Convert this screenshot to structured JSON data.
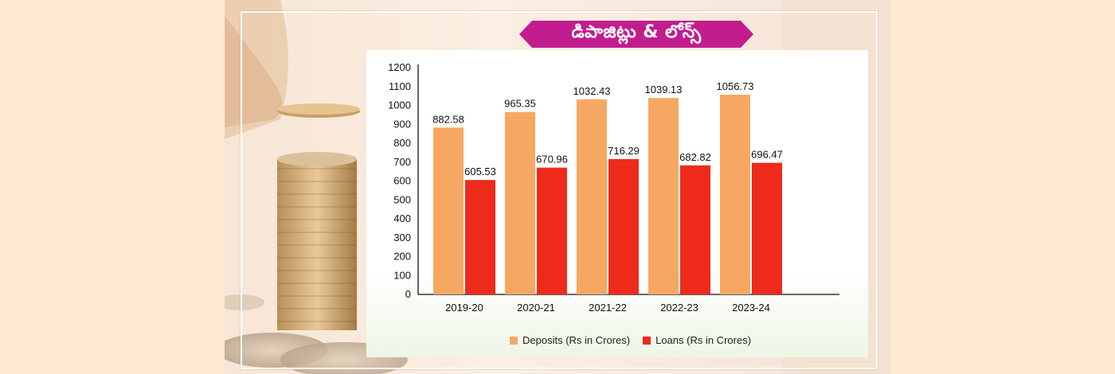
{
  "banner": {
    "title": "డిపాజిట్లు & లోన్స్",
    "color": "#c21d8f"
  },
  "chart_data": {
    "type": "bar",
    "categories": [
      "2019-20",
      "2020-21",
      "2021-22",
      "2022-23",
      "2023-24"
    ],
    "series": [
      {
        "name": "Deposits (Rs in Crores)",
        "color": "#f6a862",
        "values": [
          882.58,
          965.35,
          1032.43,
          1039.13,
          1056.73
        ],
        "labels": [
          "882.58",
          "965.35",
          "1032.43",
          "1039.13",
          "1056.73"
        ]
      },
      {
        "name": "Loans (Rs in Crores)",
        "color": "#ee2a1b",
        "values": [
          605.53,
          670.96,
          716.29,
          682.82,
          696.47
        ],
        "labels": [
          "605.53",
          "670.96",
          "716.29",
          "682.82",
          "696.47"
        ]
      }
    ],
    "yticks": [
      "0",
      "100",
      "200",
      "300",
      "400",
      "500",
      "600",
      "700",
      "800",
      "900",
      "1000",
      "1100",
      "1200"
    ],
    "ylim": [
      0,
      1200
    ],
    "grid": false,
    "legend_position": "bottom"
  }
}
